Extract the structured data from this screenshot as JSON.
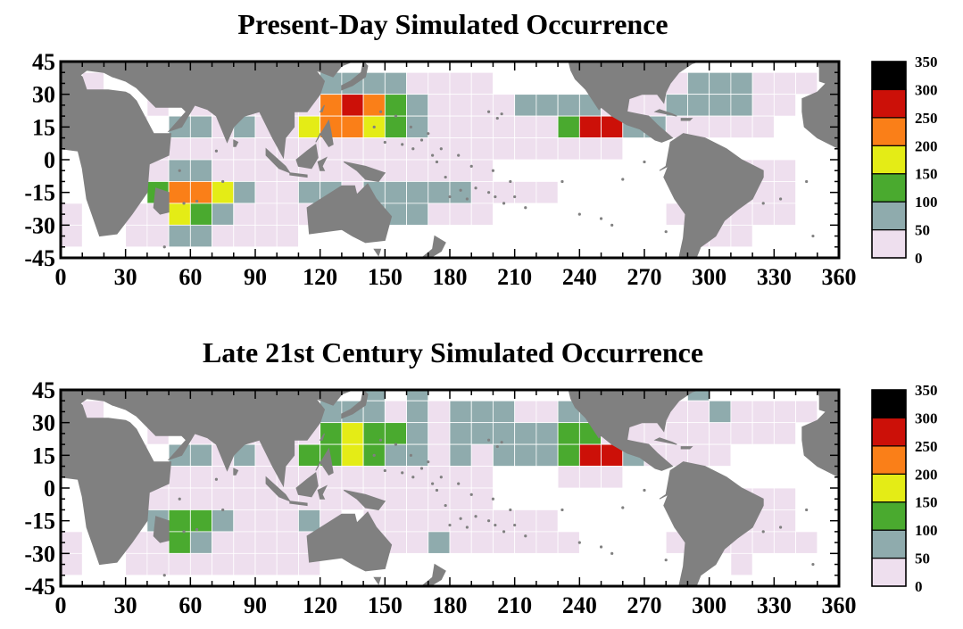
{
  "chart_data": [
    {
      "type": "heatmap",
      "title": "Present-Day Simulated Occurrence",
      "xlabel": "",
      "ylabel": "",
      "xlim": [
        0,
        360
      ],
      "ylim": [
        -45,
        45
      ],
      "x_ticks": [
        0,
        30,
        60,
        90,
        120,
        150,
        180,
        210,
        240,
        270,
        300,
        330,
        360
      ],
      "y_ticks": [
        45,
        30,
        15,
        0,
        -15,
        -30,
        -45
      ],
      "cell_size_deg": 10,
      "colorbar": {
        "labels": [
          350,
          300,
          250,
          200,
          150,
          100,
          50,
          0
        ],
        "bins": [
          {
            "min": 0,
            "max": 50,
            "color": "#eedfee"
          },
          {
            "min": 50,
            "max": 100,
            "color": "#8fabad"
          },
          {
            "min": 100,
            "max": 150,
            "color": "#4aaa2f"
          },
          {
            "min": 150,
            "max": 200,
            "color": "#e4ec16"
          },
          {
            "min": 200,
            "max": 250,
            "color": "#fa7f18"
          },
          {
            "min": 250,
            "max": 300,
            "color": "#cc1008"
          },
          {
            "min": 300,
            "max": 350,
            "color": "#000000"
          }
        ]
      },
      "cells": [
        {
          "row_lat": 30,
          "cols": [
            [
              0,
              2,
              0
            ],
            [
              10,
              20,
              0
            ],
            [
              40,
              50,
              0
            ],
            [
              120,
              130,
              1
            ],
            [
              130,
              140,
              1
            ],
            [
              140,
              150,
              1
            ],
            [
              150,
              160,
              1
            ],
            [
              160,
              200,
              0
            ],
            [
              280,
              290,
              0
            ],
            [
              290,
              300,
              1
            ],
            [
              300,
              310,
              1
            ],
            [
              310,
              320,
              1
            ],
            [
              320,
              350,
              0
            ]
          ]
        },
        {
          "row_lat": 20,
          "cols": [
            [
              0,
              2,
              0
            ],
            [
              10,
              20,
              0
            ],
            [
              40,
              50,
              0
            ],
            [
              60,
              90,
              0
            ],
            [
              90,
              110,
              0
            ],
            [
              110,
              120,
              0
            ],
            [
              120,
              130,
              4
            ],
            [
              130,
              140,
              5
            ],
            [
              140,
              150,
              4
            ],
            [
              150,
              160,
              2
            ],
            [
              160,
              170,
              1
            ],
            [
              170,
              210,
              0
            ],
            [
              210,
              230,
              1
            ],
            [
              230,
              240,
              1
            ],
            [
              240,
              250,
              1
            ],
            [
              250,
              280,
              0
            ],
            [
              280,
              320,
              1
            ],
            [
              320,
              340,
              0
            ]
          ]
        },
        {
          "row_lat": 10,
          "cols": [
            [
              0,
              2,
              0
            ],
            [
              10,
              40,
              0
            ],
            [
              50,
              70,
              1
            ],
            [
              70,
              80,
              0
            ],
            [
              80,
              90,
              1
            ],
            [
              90,
              110,
              0
            ],
            [
              110,
              120,
              3
            ],
            [
              120,
              130,
              4
            ],
            [
              130,
              140,
              4
            ],
            [
              140,
              150,
              3
            ],
            [
              150,
              160,
              2
            ],
            [
              160,
              170,
              1
            ],
            [
              170,
              230,
              0
            ],
            [
              230,
              240,
              2
            ],
            [
              240,
              260,
              5
            ],
            [
              260,
              280,
              1
            ],
            [
              280,
              330,
              0
            ]
          ]
        },
        {
          "row_lat": 0,
          "cols": [
            [
              10,
              40,
              0
            ],
            [
              40,
              260,
              0
            ]
          ]
        },
        {
          "row_lat": -10,
          "cols": [
            [
              40,
              50,
              0
            ],
            [
              50,
              60,
              1
            ],
            [
              60,
              70,
              1
            ],
            [
              70,
              180,
              0
            ],
            [
              180,
              200,
              0
            ],
            [
              310,
              340,
              0
            ]
          ]
        },
        {
          "row_lat": -20,
          "cols": [
            [
              40,
              50,
              2
            ],
            [
              50,
              60,
              4
            ],
            [
              60,
              70,
              4
            ],
            [
              70,
              80,
              3
            ],
            [
              80,
              90,
              1
            ],
            [
              90,
              110,
              0
            ],
            [
              110,
              120,
              1
            ],
            [
              120,
              130,
              1
            ],
            [
              130,
              140,
              0
            ],
            [
              140,
              150,
              1
            ],
            [
              150,
              160,
              1
            ],
            [
              160,
              170,
              1
            ],
            [
              170,
              180,
              1
            ],
            [
              180,
              190,
              1
            ],
            [
              190,
              230,
              0
            ],
            [
              290,
              340,
              0
            ]
          ]
        },
        {
          "row_lat": -30,
          "cols": [
            [
              0,
              10,
              0
            ],
            [
              30,
              50,
              0
            ],
            [
              50,
              60,
              3
            ],
            [
              60,
              70,
              2
            ],
            [
              70,
              80,
              1
            ],
            [
              80,
              120,
              0
            ],
            [
              140,
              170,
              1
            ],
            [
              170,
              200,
              0
            ],
            [
              280,
              340,
              0
            ]
          ]
        },
        {
          "row_lat": -40,
          "cols": [
            [
              0,
              10,
              0
            ],
            [
              30,
              50,
              0
            ],
            [
              50,
              70,
              1
            ],
            [
              70,
              110,
              0
            ],
            [
              290,
              320,
              0
            ]
          ]
        }
      ]
    },
    {
      "type": "heatmap",
      "title": "Late 21st Century Simulated Occurrence",
      "xlabel": "",
      "ylabel": "",
      "xlim": [
        0,
        360
      ],
      "ylim": [
        -45,
        45
      ],
      "x_ticks": [
        0,
        30,
        60,
        90,
        120,
        150,
        180,
        210,
        240,
        270,
        300,
        330,
        360
      ],
      "y_ticks": [
        45,
        30,
        15,
        0,
        -15,
        -30,
        -45
      ],
      "cell_size_deg": 10,
      "colorbar": {
        "labels": [
          350,
          300,
          250,
          200,
          150,
          100,
          50,
          0
        ],
        "bins": [
          {
            "min": 0,
            "max": 50,
            "color": "#eedfee"
          },
          {
            "min": 50,
            "max": 100,
            "color": "#8fabad"
          },
          {
            "min": 100,
            "max": 150,
            "color": "#4aaa2f"
          },
          {
            "min": 150,
            "max": 200,
            "color": "#e4ec16"
          },
          {
            "min": 200,
            "max": 250,
            "color": "#fa7f18"
          },
          {
            "min": 250,
            "max": 300,
            "color": "#cc1008"
          },
          {
            "min": 300,
            "max": 350,
            "color": "#000000"
          }
        ]
      },
      "cells": [
        {
          "row_lat": 40,
          "cols": [
            [
              140,
              150,
              1
            ],
            [
              160,
              170,
              1
            ],
            [
              290,
              300,
              1
            ]
          ]
        },
        {
          "row_lat": 30,
          "cols": [
            [
              0,
              2,
              0
            ],
            [
              10,
              20,
              0
            ],
            [
              40,
              50,
              0
            ],
            [
              120,
              130,
              1
            ],
            [
              130,
              140,
              1
            ],
            [
              140,
              150,
              1
            ],
            [
              150,
              160,
              0
            ],
            [
              160,
              170,
              1
            ],
            [
              170,
              180,
              0
            ],
            [
              180,
              190,
              1
            ],
            [
              190,
              200,
              1
            ],
            [
              200,
              210,
              1
            ],
            [
              210,
              220,
              0
            ],
            [
              220,
              230,
              0
            ],
            [
              230,
              240,
              1
            ],
            [
              240,
              250,
              1
            ],
            [
              250,
              290,
              0
            ],
            [
              290,
              300,
              0
            ],
            [
              300,
              310,
              1
            ],
            [
              310,
              350,
              0
            ]
          ]
        },
        {
          "row_lat": 20,
          "cols": [
            [
              0,
              2,
              0
            ],
            [
              10,
              20,
              0
            ],
            [
              40,
              50,
              0
            ],
            [
              60,
              110,
              0
            ],
            [
              110,
              120,
              0
            ],
            [
              120,
              130,
              2
            ],
            [
              130,
              140,
              3
            ],
            [
              140,
              150,
              2
            ],
            [
              150,
              160,
              2
            ],
            [
              160,
              170,
              1
            ],
            [
              170,
              180,
              0
            ],
            [
              180,
              200,
              1
            ],
            [
              200,
              230,
              1
            ],
            [
              230,
              250,
              2
            ],
            [
              250,
              280,
              0
            ],
            [
              280,
              340,
              0
            ]
          ]
        },
        {
          "row_lat": 10,
          "cols": [
            [
              0,
              2,
              0
            ],
            [
              10,
              40,
              0
            ],
            [
              50,
              70,
              1
            ],
            [
              70,
              80,
              0
            ],
            [
              80,
              90,
              1
            ],
            [
              90,
              110,
              0
            ],
            [
              110,
              120,
              2
            ],
            [
              120,
              130,
              2
            ],
            [
              130,
              140,
              3
            ],
            [
              140,
              150,
              2
            ],
            [
              150,
              160,
              1
            ],
            [
              160,
              170,
              1
            ],
            [
              170,
              180,
              0
            ],
            [
              180,
              190,
              1
            ],
            [
              190,
              200,
              0
            ],
            [
              200,
              230,
              1
            ],
            [
              230,
              240,
              2
            ],
            [
              240,
              260,
              5
            ],
            [
              260,
              270,
              1
            ],
            [
              270,
              310,
              0
            ]
          ]
        },
        {
          "row_lat": 0,
          "cols": [
            [
              10,
              40,
              0
            ],
            [
              40,
              200,
              0
            ],
            [
              230,
              260,
              0
            ]
          ]
        },
        {
          "row_lat": -10,
          "cols": [
            [
              40,
              180,
              0
            ],
            [
              180,
              200,
              0
            ],
            [
              310,
              340,
              0
            ]
          ]
        },
        {
          "row_lat": -20,
          "cols": [
            [
              40,
              50,
              1
            ],
            [
              50,
              70,
              2
            ],
            [
              70,
              80,
              1
            ],
            [
              80,
              110,
              0
            ],
            [
              110,
              120,
              1
            ],
            [
              120,
              130,
              0
            ],
            [
              140,
              180,
              0
            ],
            [
              180,
              230,
              0
            ],
            [
              290,
              340,
              0
            ]
          ]
        },
        {
          "row_lat": -30,
          "cols": [
            [
              0,
              10,
              0
            ],
            [
              30,
              50,
              0
            ],
            [
              50,
              60,
              2
            ],
            [
              60,
              70,
              1
            ],
            [
              70,
              120,
              0
            ],
            [
              140,
              170,
              0
            ],
            [
              170,
              180,
              1
            ],
            [
              180,
              200,
              0
            ],
            [
              200,
              240,
              0
            ],
            [
              280,
              350,
              0
            ]
          ]
        },
        {
          "row_lat": -40,
          "cols": [
            [
              0,
              10,
              0
            ],
            [
              30,
              120,
              0
            ],
            [
              310,
              320,
              0
            ]
          ]
        }
      ]
    }
  ]
}
